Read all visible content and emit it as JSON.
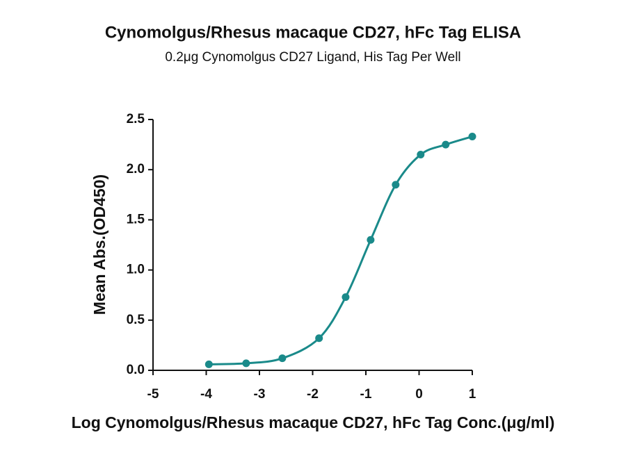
{
  "chart_data": {
    "type": "scatter",
    "title": "Cynomolgus/Rhesus macaque CD27, hFc Tag ELISA",
    "subtitle": "0.2μg Cynomolgus CD27 Ligand, His Tag Per Well",
    "x_label": "Log Cynomolgus/Rhesus macaque CD27, hFc Tag Conc.(μg/ml)",
    "y_label": "Mean Abs.(OD450)",
    "x": [
      -3.95,
      -3.25,
      -2.57,
      -1.88,
      -1.38,
      -0.91,
      -0.44,
      0.03,
      0.5,
      1.0
    ],
    "values": [
      0.06,
      0.07,
      0.12,
      0.32,
      0.73,
      1.3,
      1.85,
      2.15,
      2.25,
      2.33
    ],
    "color": "#1a8a8a",
    "line": "smooth",
    "xlim": [
      -5,
      1
    ],
    "xticks": [
      -5,
      -4,
      -3,
      -2,
      -1,
      0,
      1
    ],
    "ylim": [
      0,
      2.5
    ],
    "yticks": [
      {
        "value": 0,
        "label": "0.0"
      },
      0.5,
      {
        "value": 1,
        "label": "1.0"
      },
      1.5,
      {
        "value": 2,
        "label": "2.0"
      },
      2.5
    ]
  }
}
